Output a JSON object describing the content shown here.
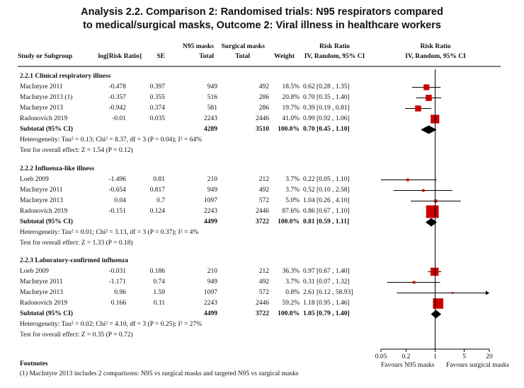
{
  "title_line1": "Analysis 2.2.   Comparison 2: Randomised trials: N95 respirators compared",
  "title_line2": "to medical/surgical masks, Outcome 2: Viral illness in healthcare workers",
  "headers": {
    "study": "Study or Subgroup",
    "logrr": "log[Risk Ratio]",
    "se": "SE",
    "n95_top": "N95 masks",
    "n95_bottom": "Total",
    "surg_top": "Surgical masks",
    "surg_bottom": "Total",
    "weight": "Weight",
    "rr_top": "Risk Ratio",
    "rr_bottom": "IV, Random, 95% CI",
    "plot_top": "Risk Ratio",
    "plot_bottom": "IV, Random, 95% CI"
  },
  "axis": {
    "ticks": [
      "0.05",
      "0.2",
      "1",
      "5",
      "20"
    ],
    "left_label": "Favours N95 masks",
    "right_label": "Favours surgical masks"
  },
  "footnotes": {
    "heading": "Footnotes",
    "text": "(1) MacIntyre 2013 includes 2 comparisons: N95 vs surgical masks and targeted N95 vs surgical masks"
  },
  "chart_data": {
    "type": "forest",
    "scale": "log",
    "xlim": [
      0.05,
      20
    ],
    "null_value": 1,
    "marker_color": "#cc0000",
    "subgroups": [
      {
        "name": "2.2.1 Clinical respiratory illness",
        "studies": [
          {
            "study": "MacIntyre 2011",
            "logrr": "-0.478",
            "se": "0.397",
            "n95": "949",
            "surg": "492",
            "weight": "18.5%",
            "ci": "0.62 [0.28 , 1.35]",
            "rr": 0.62,
            "lo": 0.28,
            "hi": 1.35
          },
          {
            "study": "MacIntyre 2013 (1)",
            "logrr": "-0.357",
            "se": "0.355",
            "n95": "516",
            "surg": "286",
            "weight": "20.8%",
            "ci": "0.70 [0.35 , 1.40]",
            "rr": 0.7,
            "lo": 0.35,
            "hi": 1.4
          },
          {
            "study": "MacIntyre 2013",
            "logrr": "-0.942",
            "se": "0.374",
            "n95": "581",
            "surg": "286",
            "weight": "19.7%",
            "ci": "0.39 [0.19 , 0.81]",
            "rr": 0.39,
            "lo": 0.19,
            "hi": 0.81
          },
          {
            "study": "Radonovich 2019",
            "logrr": "-0.01",
            "se": "0.035",
            "n95": "2243",
            "surg": "2446",
            "weight": "41.0%",
            "ci": "0.99 [0.92 , 1.06]",
            "rr": 0.99,
            "lo": 0.92,
            "hi": 1.06
          }
        ],
        "subtotal": {
          "label": "Subtotal (95% CI)",
          "n95": "4289",
          "surg": "3510",
          "weight": "100.0%",
          "ci": "0.70 [0.45 , 1.10]",
          "rr": 0.7,
          "lo": 0.45,
          "hi": 1.1
        },
        "heterogeneity": "Heterogeneity: Tau² = 0.13; Chi² = 8.37, df = 3 (P = 0.04); I² = 64%",
        "overall": "Test for overall effect: Z = 1.54 (P = 0.12)"
      },
      {
        "name": "2.2.2 Influenza-like illness",
        "studies": [
          {
            "study": "Loeb 2009",
            "logrr": "-1.496",
            "se": "0.81",
            "n95": "210",
            "surg": "212",
            "weight": "3.7%",
            "ci": "0.22 [0.05 , 1.10]",
            "rr": 0.22,
            "lo": 0.05,
            "hi": 1.1
          },
          {
            "study": "MacIntyre 2011",
            "logrr": "-0.654",
            "se": "0.817",
            "n95": "949",
            "surg": "492",
            "weight": "3.7%",
            "ci": "0.52 [0.10 , 2.58]",
            "rr": 0.52,
            "lo": 0.1,
            "hi": 2.58
          },
          {
            "study": "MacIntyre 2013",
            "logrr": "0.04",
            "se": "0.7",
            "n95": "1097",
            "surg": "572",
            "weight": "5.0%",
            "ci": "1.04 [0.26 , 4.10]",
            "rr": 1.04,
            "lo": 0.26,
            "hi": 4.1
          },
          {
            "study": "Radonovich 2019",
            "logrr": "-0.151",
            "se": "0.124",
            "n95": "2243",
            "surg": "2446",
            "weight": "87.6%",
            "ci": "0.86 [0.67 , 1.10]",
            "rr": 0.86,
            "lo": 0.67,
            "hi": 1.1
          }
        ],
        "subtotal": {
          "label": "Subtotal (95% CI)",
          "n95": "4499",
          "surg": "3722",
          "weight": "100.0%",
          "ci": "0.81 [0.59 , 1.11]",
          "rr": 0.81,
          "lo": 0.59,
          "hi": 1.11
        },
        "heterogeneity": "Heterogeneity: Tau² = 0.01; Chi² = 3.13, df = 3 (P = 0.37); I² = 4%",
        "overall": "Test for overall effect: Z = 1.33 (P = 0.18)"
      },
      {
        "name": "2.2.3 Laboratory-confirmed influenza",
        "studies": [
          {
            "study": "Loeb 2009",
            "logrr": "-0.031",
            "se": "0.186",
            "n95": "210",
            "surg": "212",
            "weight": "36.3%",
            "ci": "0.97 [0.67 , 1.40]",
            "rr": 0.97,
            "lo": 0.67,
            "hi": 1.4
          },
          {
            "study": "MacIntyre 2011",
            "logrr": "-1.171",
            "se": "0.74",
            "n95": "949",
            "surg": "492",
            "weight": "3.7%",
            "ci": "0.31 [0.07 , 1.32]",
            "rr": 0.31,
            "lo": 0.07,
            "hi": 1.32
          },
          {
            "study": "MacIntyre 2013",
            "logrr": "0.96",
            "se": "1.59",
            "n95": "1097",
            "surg": "572",
            "weight": "0.8%",
            "ci": "2.61 [0.12 , 58.93]",
            "rr": 2.61,
            "lo": 0.12,
            "hi": 58.93
          },
          {
            "study": "Radonovich 2019",
            "logrr": "0.166",
            "se": "0.11",
            "n95": "2243",
            "surg": "2446",
            "weight": "59.2%",
            "ci": "1.18 [0.95 , 1.46]",
            "rr": 1.18,
            "lo": 0.95,
            "hi": 1.46
          }
        ],
        "subtotal": {
          "label": "Subtotal (95% CI)",
          "n95": "4499",
          "surg": "3722",
          "weight": "100.0%",
          "ci": "1.05 [0.79 , 1.40]",
          "rr": 1.05,
          "lo": 0.79,
          "hi": 1.4
        },
        "heterogeneity": "Heterogeneity: Tau² = 0.02; Chi² = 4.10, df = 3 (P = 0.25); I² = 27%",
        "overall": "Test for overall effect: Z = 0.35 (P = 0.72)"
      }
    ]
  }
}
